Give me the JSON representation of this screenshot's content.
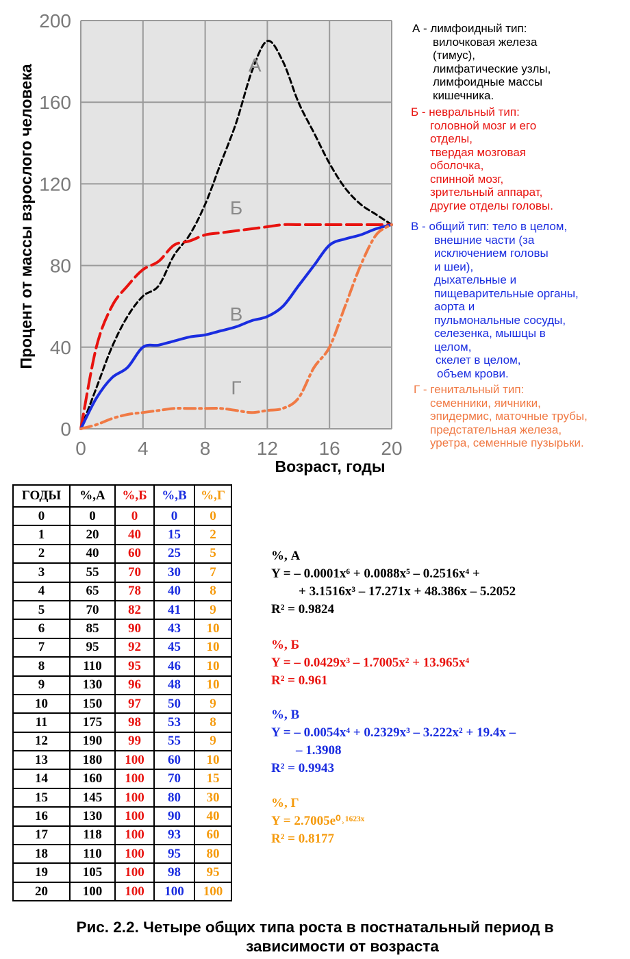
{
  "chart_data": {
    "type": "line",
    "xlabel": "Возраст, годы",
    "ylabel": "Процент от массы взрослого человека",
    "xlim": [
      0,
      20
    ],
    "ylim": [
      0,
      200
    ],
    "x_ticks": [
      "0",
      "4",
      "8",
      "12",
      "16",
      "20"
    ],
    "y_ticks": [
      "0",
      "40",
      "80",
      "120",
      "160",
      "200"
    ],
    "grid": true,
    "x": [
      0,
      1,
      2,
      3,
      4,
      5,
      6,
      7,
      8,
      9,
      10,
      11,
      12,
      13,
      14,
      15,
      16,
      17,
      18,
      19,
      20
    ],
    "series": [
      {
        "name": "А",
        "color": "#000000",
        "style": "dashed",
        "values": [
          0,
          20,
          40,
          55,
          65,
          70,
          85,
          95,
          110,
          130,
          150,
          175,
          190,
          180,
          160,
          145,
          130,
          118,
          110,
          105,
          100
        ]
      },
      {
        "name": "Б",
        "color": "#e8130f",
        "style": "long-dash",
        "values": [
          0,
          40,
          60,
          70,
          78,
          82,
          90,
          92,
          95,
          96,
          97,
          98,
          99,
          100,
          100,
          100,
          100,
          100,
          100,
          100,
          100
        ]
      },
      {
        "name": "В",
        "color": "#1a2de0",
        "style": "solid",
        "values": [
          0,
          15,
          25,
          30,
          40,
          41,
          43,
          45,
          46,
          48,
          50,
          53,
          55,
          60,
          70,
          80,
          90,
          93,
          95,
          98,
          100
        ]
      },
      {
        "name": "Г",
        "color": "#f07a45",
        "style": "dash-dot",
        "values": [
          0,
          2,
          5,
          7,
          8,
          9,
          10,
          10,
          10,
          10,
          9,
          8,
          9,
          10,
          15,
          30,
          40,
          60,
          80,
          95,
          100
        ]
      }
    ]
  },
  "legend": {
    "A": {
      "color": "#000000",
      "lines": [
        "А - лимфоидный тип:",
        "вилочковая железа",
        "(тимус),",
        "лимфатические узлы,",
        "лимфоидные массы",
        "кишечника."
      ]
    },
    "B": {
      "color": "#e8130f",
      "lines": [
        "Б - невральный тип:",
        "головной мозг и его",
        "отделы,",
        "твердая мозговая",
        "оболочка,",
        "спинной мозг,",
        "зрительный аппарат,",
        "другие отделы головы."
      ]
    },
    "V": {
      "color": "#1a2de0",
      "lines": [
        "В - общий тип: тело в целом,",
        "внешние части (за",
        "исключением головы",
        "и шеи),",
        "дыхательные и",
        "пищеварительные органы,",
        "аорта и",
        "пульмональные сосуды,",
        "селезенка, мышцы в",
        "целом,",
        "скелет в целом,",
        "объем крови."
      ]
    },
    "G": {
      "color": "#f07a45",
      "lines": [
        "Г - генитальный тип:",
        "семенники, яичники,",
        "эпидермис, маточные трубы,",
        "предстательная  железа,",
        "уретра, семенные пузырьки."
      ]
    }
  },
  "table": {
    "headers": [
      "ГОДЫ",
      "%,А",
      "%,Б",
      "%,В",
      "%,Г"
    ],
    "colors": [
      "#000000",
      "#000000",
      "#e8130f",
      "#1a2de0",
      "#f59a0c"
    ],
    "rows": [
      [
        "0",
        "0",
        "0",
        "0",
        "0"
      ],
      [
        "1",
        "20",
        "40",
        "15",
        "2"
      ],
      [
        "2",
        "40",
        "60",
        "25",
        "5"
      ],
      [
        "3",
        "55",
        "70",
        "30",
        "7"
      ],
      [
        "4",
        "65",
        "78",
        "40",
        "8"
      ],
      [
        "5",
        "70",
        "82",
        "41",
        "9"
      ],
      [
        "6",
        "85",
        "90",
        "43",
        "10"
      ],
      [
        "7",
        "95",
        "92",
        "45",
        "10"
      ],
      [
        "8",
        "110",
        "95",
        "46",
        "10"
      ],
      [
        "9",
        "130",
        "96",
        "48",
        "10"
      ],
      [
        "10",
        "150",
        "97",
        "50",
        "9"
      ],
      [
        "11",
        "175",
        "98",
        "53",
        "8"
      ],
      [
        "12",
        "190",
        "99",
        "55",
        "9"
      ],
      [
        "13",
        "180",
        "100",
        "60",
        "10"
      ],
      [
        "14",
        "160",
        "100",
        "70",
        "15"
      ],
      [
        "15",
        "145",
        "100",
        "80",
        "30"
      ],
      [
        "16",
        "130",
        "100",
        "90",
        "40"
      ],
      [
        "17",
        "118",
        "100",
        "93",
        "60"
      ],
      [
        "18",
        "110",
        "100",
        "95",
        "80"
      ],
      [
        "19",
        "105",
        "100",
        "98",
        "95"
      ],
      [
        "20",
        "100",
        "100",
        "100",
        "100"
      ]
    ]
  },
  "formulas": {
    "A": {
      "color": "#000000",
      "title": "%, А",
      "lines": [
        "Y = – 0.0001x⁶ + 0.0088x⁵ – 0.2516x⁴ +",
        "+ 3.1516x³ – 17.271x + 48.386x – 5.2052"
      ],
      "r2": "R² = 0.9824"
    },
    "B": {
      "color": "#e8130f",
      "title": "%, Б",
      "lines": [
        "Y = – 0.0429x³ – 1.7005x² + 13.965x⁴"
      ],
      "r2": "R² = 0.961"
    },
    "V": {
      "color": "#1a2de0",
      "title": "%, В",
      "lines": [
        "Y = – 0.0054x⁴ + 0.2329x³ – 3.222x² + 19.4x –",
        "– 1.3908"
      ],
      "r2": "R² = 0.9943"
    },
    "G": {
      "color": "#f59a0c",
      "title": "%, Г",
      "lines": [
        "Y = 2.7005e⁰˒¹⁶²³ˣ"
      ],
      "r2": "R² = 0.8177"
    }
  },
  "caption": {
    "line1": "Рис. 2.2. Четыре общих типа роста в постнатальный период в",
    "line2": "зависимости от возраста"
  }
}
